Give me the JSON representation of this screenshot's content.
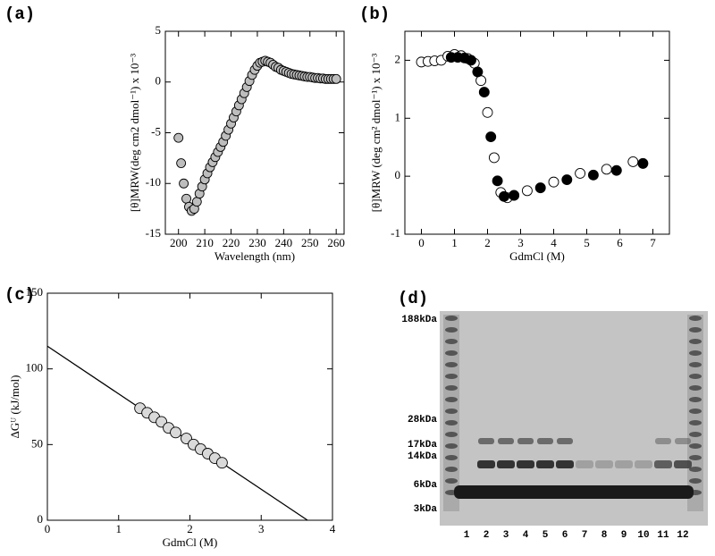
{
  "chart_data": [
    {
      "type": "scatter",
      "panel_label": "(a)",
      "xlabel": "Wavelength (nm)",
      "ylabel": "[θ]MRW(deg cm2 dmol⁻¹) x 10⁻³",
      "xlim": [
        195,
        263
      ],
      "ylim": [
        -15,
        5
      ],
      "xticks": [
        200,
        210,
        220,
        230,
        240,
        250,
        260
      ],
      "yticks": [
        -15,
        -10,
        -5,
        0,
        5
      ],
      "series": [
        {
          "marker": "filled",
          "color": "#bdbdbd",
          "x": [
            200,
            201,
            202,
            203,
            204,
            205,
            206,
            207,
            208,
            209,
            210,
            211,
            212,
            213,
            214,
            215,
            216,
            217,
            218,
            219,
            220,
            221,
            222,
            223,
            224,
            225,
            226,
            227,
            228,
            229,
            230,
            231,
            232,
            233,
            234,
            235,
            236,
            237,
            238,
            239,
            240,
            241,
            242,
            243,
            244,
            245,
            246,
            247,
            248,
            249,
            250,
            251,
            252,
            253,
            254,
            255,
            256,
            257,
            258,
            259,
            260
          ],
          "values": [
            -5.5,
            -8.0,
            -10.0,
            -11.5,
            -12.3,
            -12.7,
            -12.5,
            -11.8,
            -11.0,
            -10.3,
            -9.6,
            -9.0,
            -8.4,
            -7.9,
            -7.4,
            -6.9,
            -6.4,
            -5.9,
            -5.3,
            -4.7,
            -4.1,
            -3.5,
            -2.9,
            -2.3,
            -1.7,
            -1.1,
            -0.5,
            0.1,
            0.7,
            1.2,
            1.6,
            1.9,
            2.0,
            2.1,
            2.0,
            1.9,
            1.7,
            1.5,
            1.4,
            1.2,
            1.1,
            1.0,
            0.9,
            0.8,
            0.75,
            0.7,
            0.65,
            0.6,
            0.55,
            0.5,
            0.5,
            0.45,
            0.4,
            0.4,
            0.35,
            0.35,
            0.3,
            0.3,
            0.3,
            0.3,
            0.3
          ]
        }
      ]
    },
    {
      "type": "scatter",
      "panel_label": "(b)",
      "xlabel": "GdmCl (M)",
      "ylabel": "[θ]MRW (deg cm² dmol⁻¹) x 10⁻³",
      "xlim": [
        -0.5,
        7.5
      ],
      "ylim": [
        -1,
        2.5
      ],
      "xticks": [
        0,
        1,
        2,
        3,
        4,
        5,
        6,
        7
      ],
      "yticks": [
        -1,
        0,
        1,
        2
      ],
      "series": [
        {
          "marker": "open",
          "color": "#ffffff",
          "x": [
            0,
            0.2,
            0.4,
            0.6,
            0.8,
            1.0,
            1.2,
            1.4,
            1.6,
            1.8,
            2.0,
            2.2,
            2.4,
            2.6,
            2.8,
            3.2,
            4.0,
            4.8,
            5.6,
            6.4
          ],
          "values": [
            1.97,
            1.98,
            1.99,
            2.0,
            2.07,
            2.1,
            2.08,
            2.03,
            1.95,
            1.65,
            1.1,
            0.32,
            -0.28,
            -0.37,
            -0.33,
            -0.25,
            -0.1,
            0.05,
            0.12,
            0.25
          ]
        },
        {
          "marker": "filled",
          "color": "#000000",
          "x": [
            0.9,
            1.1,
            1.3,
            1.5,
            1.7,
            1.9,
            2.1,
            2.3,
            2.5,
            2.8,
            3.6,
            4.4,
            5.2,
            5.9,
            6.7
          ],
          "values": [
            2.05,
            2.05,
            2.04,
            2.0,
            1.8,
            1.45,
            0.68,
            -0.08,
            -0.35,
            -0.33,
            -0.2,
            -0.06,
            0.02,
            0.1,
            0.22
          ]
        }
      ]
    },
    {
      "type": "scatter",
      "panel_label": "(c)",
      "xlabel": "GdmCl (M)",
      "ylabel": "ΔGᵁ (kJ/mol)",
      "xlim": [
        0,
        4
      ],
      "ylim": [
        0,
        150
      ],
      "xticks": [
        0,
        1,
        2,
        3,
        4
      ],
      "yticks": [
        0,
        50,
        100,
        150
      ],
      "series": [
        {
          "marker": "line",
          "color": "#000000",
          "x": [
            0,
            3.65
          ],
          "values": [
            115,
            0
          ]
        },
        {
          "marker": "filled",
          "color": "#d9d9d9",
          "x": [
            1.3,
            1.4,
            1.5,
            1.6,
            1.7,
            1.8,
            1.95,
            2.05,
            2.15,
            2.25,
            2.35,
            2.45
          ],
          "values": [
            74,
            71,
            68,
            65,
            61,
            58,
            54,
            50,
            47,
            44,
            41,
            38
          ]
        }
      ]
    },
    {
      "type": "gel",
      "panel_label": "(d)",
      "markers": [
        "188kDa",
        "28kDa",
        "17kDa",
        "14kDa",
        "6kDa",
        "3kDa"
      ],
      "lanes": [
        "1",
        "2",
        "3",
        "4",
        "5",
        "6",
        "7",
        "8",
        "9",
        "10",
        "11",
        "12"
      ]
    }
  ]
}
